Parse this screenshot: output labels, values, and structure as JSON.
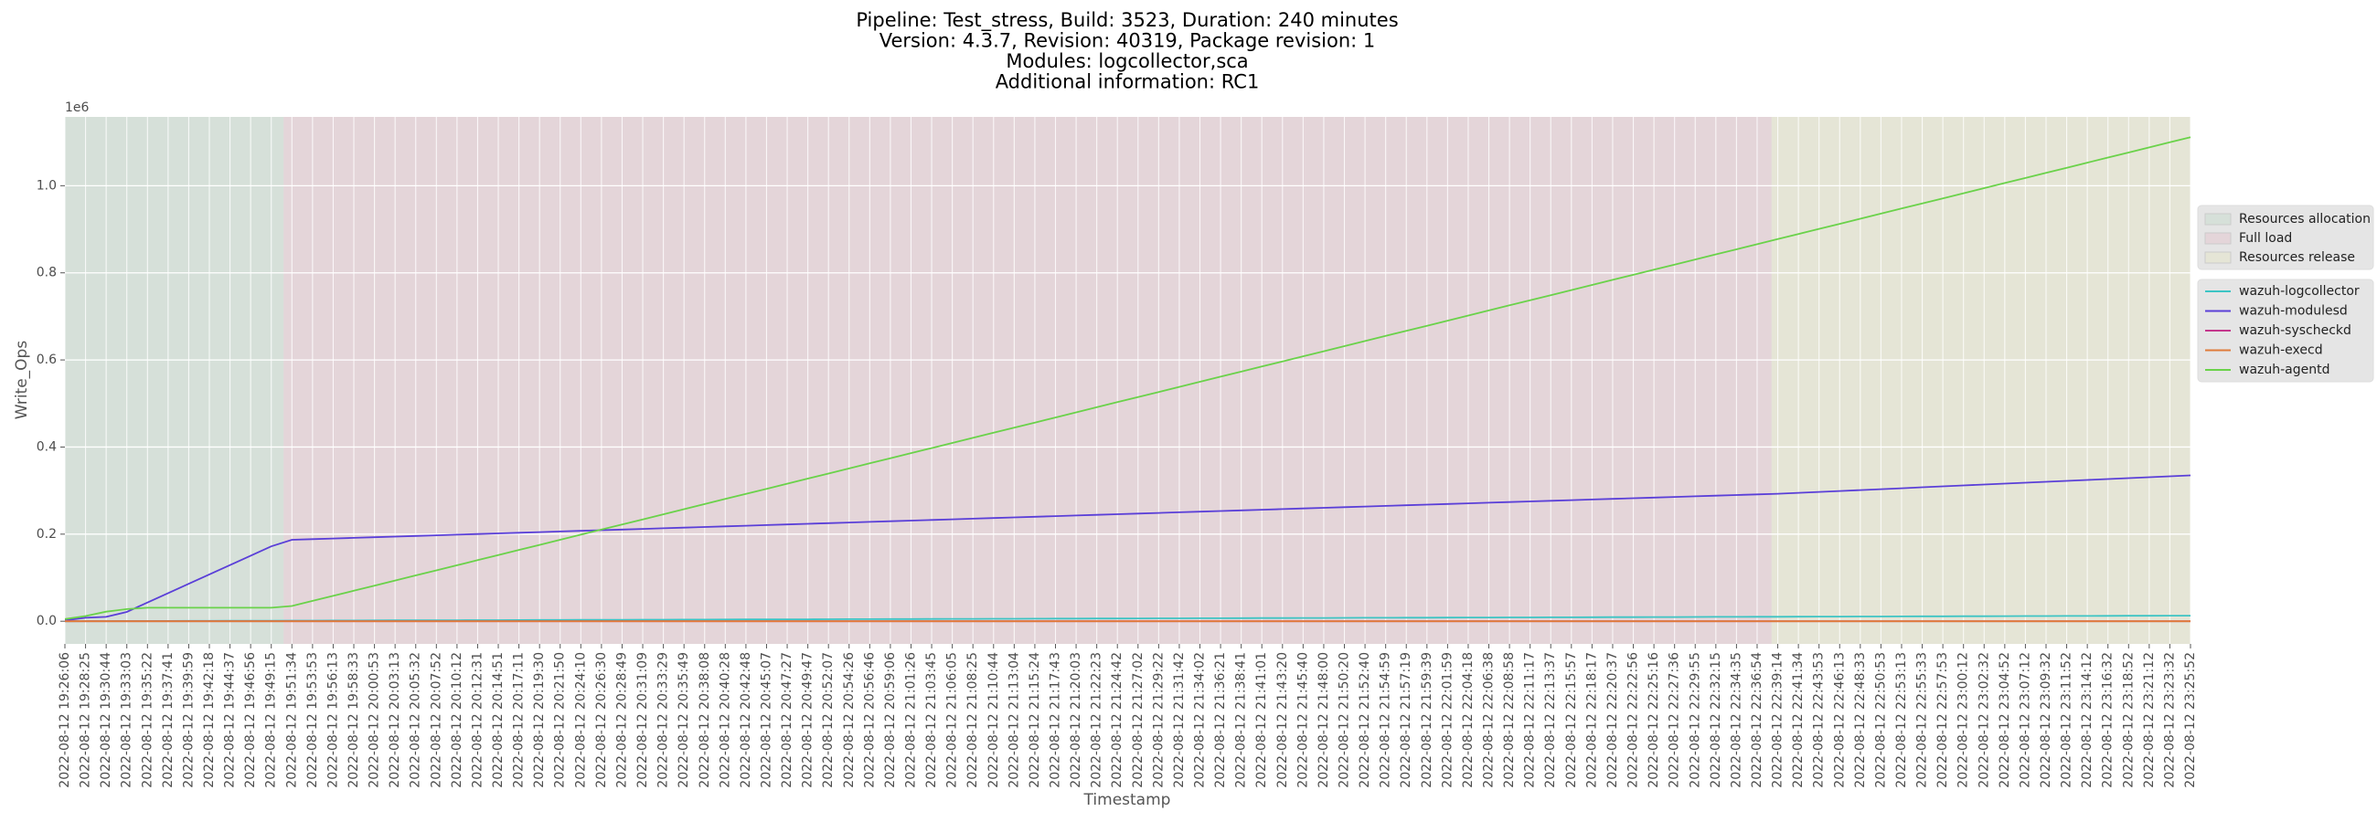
{
  "chart_data": {
    "type": "line",
    "title": [
      "Pipeline: Test_stress, Build: 3523, Duration: 240 minutes",
      "Version: 4.3.7, Revision: 40319, Package revision: 1",
      "Modules: logcollector,sca",
      "Additional information: RC1"
    ],
    "xlabel": "Timestamp",
    "ylabel": "Write_Ops",
    "y_offset_label": "1e6",
    "ylim": [
      -52000,
      1158000
    ],
    "yticks": [
      {
        "value": 0,
        "label": "0.0"
      },
      {
        "value": 200000,
        "label": "0.2"
      },
      {
        "value": 400000,
        "label": "0.4"
      },
      {
        "value": 600000,
        "label": "0.6"
      },
      {
        "value": 800000,
        "label": "0.8"
      },
      {
        "value": 1000000,
        "label": "1.0"
      }
    ],
    "grid": true,
    "legend": "right",
    "phases": [
      {
        "name": "Resources allocation",
        "color": "#d6e0d9",
        "x": [
          0,
          10.6
        ]
      },
      {
        "name": "Full load",
        "color": "#e4d5d9",
        "x": [
          10.6,
          82.7
        ]
      },
      {
        "name": "Resources release",
        "color": "#e5e5d6",
        "x": [
          82.7,
          103
        ]
      }
    ],
    "categories": [
      "2022-08-12 19:26:06",
      "2022-08-12 19:28:25",
      "2022-08-12 19:30:44",
      "2022-08-12 19:33:03",
      "2022-08-12 19:35:22",
      "2022-08-12 19:37:41",
      "2022-08-12 19:39:59",
      "2022-08-12 19:42:18",
      "2022-08-12 19:44:37",
      "2022-08-12 19:46:56",
      "2022-08-12 19:49:15",
      "2022-08-12 19:51:34",
      "2022-08-12 19:53:53",
      "2022-08-12 19:56:13",
      "2022-08-12 19:58:33",
      "2022-08-12 20:00:53",
      "2022-08-12 20:03:13",
      "2022-08-12 20:05:32",
      "2022-08-12 20:07:52",
      "2022-08-12 20:10:12",
      "2022-08-12 20:12:31",
      "2022-08-12 20:14:51",
      "2022-08-12 20:17:11",
      "2022-08-12 20:19:30",
      "2022-08-12 20:21:50",
      "2022-08-12 20:24:10",
      "2022-08-12 20:26:30",
      "2022-08-12 20:28:49",
      "2022-08-12 20:31:09",
      "2022-08-12 20:33:29",
      "2022-08-12 20:35:49",
      "2022-08-12 20:38:08",
      "2022-08-12 20:40:28",
      "2022-08-12 20:42:48",
      "2022-08-12 20:45:07",
      "2022-08-12 20:47:27",
      "2022-08-12 20:49:47",
      "2022-08-12 20:52:07",
      "2022-08-12 20:54:26",
      "2022-08-12 20:56:46",
      "2022-08-12 20:59:06",
      "2022-08-12 21:01:26",
      "2022-08-12 21:03:45",
      "2022-08-12 21:06:05",
      "2022-08-12 21:08:25",
      "2022-08-12 21:10:44",
      "2022-08-12 21:13:04",
      "2022-08-12 21:15:24",
      "2022-08-12 21:17:43",
      "2022-08-12 21:20:03",
      "2022-08-12 21:22:23",
      "2022-08-12 21:24:42",
      "2022-08-12 21:27:02",
      "2022-08-12 21:29:22",
      "2022-08-12 21:31:42",
      "2022-08-12 21:34:02",
      "2022-08-12 21:36:21",
      "2022-08-12 21:38:41",
      "2022-08-12 21:41:01",
      "2022-08-12 21:43:20",
      "2022-08-12 21:45:40",
      "2022-08-12 21:48:00",
      "2022-08-12 21:50:20",
      "2022-08-12 21:52:40",
      "2022-08-12 21:54:59",
      "2022-08-12 21:57:19",
      "2022-08-12 21:59:39",
      "2022-08-12 22:01:59",
      "2022-08-12 22:04:18",
      "2022-08-12 22:06:38",
      "2022-08-12 22:08:58",
      "2022-08-12 22:11:17",
      "2022-08-12 22:13:37",
      "2022-08-12 22:15:57",
      "2022-08-12 22:18:17",
      "2022-08-12 22:20:37",
      "2022-08-12 22:22:56",
      "2022-08-12 22:25:16",
      "2022-08-12 22:27:36",
      "2022-08-12 22:29:55",
      "2022-08-12 22:32:15",
      "2022-08-12 22:34:35",
      "2022-08-12 22:36:54",
      "2022-08-12 22:39:14",
      "2022-08-12 22:41:34",
      "2022-08-12 22:43:53",
      "2022-08-12 22:46:13",
      "2022-08-12 22:48:33",
      "2022-08-12 22:50:53",
      "2022-08-12 22:53:13",
      "2022-08-12 22:55:33",
      "2022-08-12 22:57:53",
      "2022-08-12 23:00:12",
      "2022-08-12 23:02:32",
      "2022-08-12 23:04:52",
      "2022-08-12 23:07:12",
      "2022-08-12 23:09:32",
      "2022-08-12 23:11:52",
      "2022-08-12 23:14:12",
      "2022-08-12 23:16:32",
      "2022-08-12 23:18:52",
      "2022-08-12 23:21:12",
      "2022-08-12 23:23:32",
      "2022-08-12 23:25:52"
    ],
    "series": [
      {
        "name": "wazuh-logcollector",
        "color": "#3cc4c4",
        "values": [
          0,
          125,
          250,
          375,
          500,
          625,
          750,
          875,
          1000,
          1125,
          1250,
          1375,
          1500,
          1625,
          1750,
          1875,
          2000,
          2125,
          2250,
          2375,
          2500,
          2625,
          2750,
          2875,
          3000,
          3125,
          3250,
          3375,
          3500,
          3625,
          3750,
          3875,
          4000,
          4125,
          4250,
          4375,
          4500,
          4625,
          4750,
          4875,
          5000,
          5125,
          5250,
          5375,
          5500,
          5625,
          5750,
          5875,
          6000,
          6125,
          6250,
          6375,
          6500,
          6625,
          6750,
          6875,
          7000,
          7125,
          7250,
          7375,
          7500,
          7625,
          7750,
          7875,
          8000,
          8125,
          8250,
          8375,
          8500,
          8625,
          8750,
          8875,
          9000,
          9125,
          9250,
          9375,
          9500,
          9625,
          9750,
          9875,
          10000,
          10125,
          10250,
          10375,
          10500,
          10625,
          10750,
          10875,
          11000,
          11125,
          11250,
          11375,
          11500,
          11625,
          11750,
          11875,
          12000,
          12125,
          12250,
          12375,
          12500,
          12625,
          12750,
          12875
        ]
      },
      {
        "name": "wazuh-modulesd",
        "color": "#5a3fd8",
        "values": [
          2000,
          8000,
          10000,
          21500,
          43000,
          64500,
          86000,
          107500,
          129000,
          150500,
          172000,
          187000,
          188470,
          189940,
          191410,
          192880,
          194350,
          195820,
          197290,
          198760,
          200230,
          201700,
          203170,
          204640,
          206110,
          207580,
          209050,
          210520,
          211990,
          213460,
          214930,
          216400,
          217870,
          219340,
          220810,
          222280,
          223750,
          225220,
          226690,
          228160,
          229630,
          231100,
          232570,
          234040,
          235510,
          236980,
          238450,
          239920,
          241390,
          242860,
          244330,
          245800,
          247270,
          248740,
          250210,
          251680,
          253150,
          254620,
          256090,
          257560,
          259030,
          260500,
          261970,
          263440,
          264910,
          266380,
          267850,
          269320,
          270790,
          272260,
          273730,
          275200,
          276670,
          278140,
          279610,
          281080,
          282550,
          284020,
          285490,
          286960,
          288430,
          289900,
          291370,
          292840,
          294940,
          297040,
          299140,
          301240,
          303340,
          305440,
          307540,
          309640,
          311740,
          313840,
          315940,
          318040,
          320140,
          322240,
          324340,
          326440,
          328540,
          330640,
          332740,
          334840
        ]
      },
      {
        "name": "wazuh-syscheckd",
        "color": "#c4378c",
        "values": [
          0,
          0,
          0,
          0,
          0,
          0,
          0,
          0,
          0,
          0,
          0,
          0,
          0,
          0,
          0,
          0,
          0,
          0,
          0,
          0,
          0,
          0,
          0,
          0,
          0,
          0,
          0,
          0,
          0,
          0,
          0,
          0,
          0,
          0,
          0,
          0,
          0,
          0,
          0,
          0,
          0,
          0,
          0,
          0,
          0,
          0,
          0,
          0,
          0,
          0,
          0,
          0,
          0,
          0,
          0,
          0,
          0,
          0,
          0,
          0,
          0,
          0,
          0,
          0,
          0,
          0,
          0,
          0,
          0,
          0,
          0,
          0,
          0,
          0,
          0,
          0,
          0,
          0,
          0,
          0,
          0,
          0,
          0,
          0,
          0,
          0,
          0,
          0,
          0,
          0,
          0,
          0,
          0,
          0,
          0,
          0,
          0,
          0,
          0,
          0,
          0,
          0,
          0,
          0
        ]
      },
      {
        "name": "wazuh-execd",
        "color": "#e07c3a",
        "values": [
          0,
          0,
          0,
          0,
          0,
          0,
          0,
          0,
          0,
          0,
          0,
          0,
          0,
          0,
          0,
          0,
          0,
          0,
          0,
          0,
          0,
          0,
          0,
          0,
          0,
          0,
          0,
          0,
          0,
          0,
          0,
          0,
          0,
          0,
          0,
          0,
          0,
          0,
          0,
          0,
          0,
          0,
          0,
          0,
          0,
          0,
          0,
          0,
          0,
          0,
          0,
          0,
          0,
          0,
          0,
          0,
          0,
          0,
          0,
          0,
          0,
          0,
          0,
          0,
          0,
          0,
          0,
          0,
          0,
          0,
          0,
          0,
          0,
          0,
          0,
          0,
          0,
          0,
          0,
          0,
          0,
          0,
          0,
          0,
          0,
          0,
          0,
          0,
          0,
          0,
          0,
          0,
          0,
          0,
          0,
          0,
          0,
          0,
          0,
          0,
          0,
          0,
          0,
          0
        ]
      },
      {
        "name": "wazuh-agentd",
        "color": "#6ad24a",
        "values": [
          5000,
          12000,
          22000,
          28000,
          31000,
          31000,
          31000,
          31000,
          31000,
          31000,
          31000,
          35000,
          46700,
          58400,
          70100,
          81800,
          93500,
          105200,
          116900,
          128600,
          140300,
          152000,
          163700,
          175400,
          187100,
          198800,
          210500,
          222200,
          233900,
          245600,
          257300,
          269000,
          280700,
          292400,
          304100,
          315800,
          327500,
          339200,
          350900,
          362600,
          374300,
          386000,
          397700,
          409400,
          421100,
          432800,
          444500,
          456200,
          467900,
          479600,
          491300,
          503000,
          514700,
          526400,
          538100,
          549800,
          561500,
          573200,
          584900,
          596600,
          608300,
          620000,
          631700,
          643400,
          655100,
          666800,
          678500,
          690200,
          701900,
          713600,
          725300,
          737000,
          748700,
          760400,
          772100,
          783800,
          795500,
          807200,
          818900,
          830600,
          842300,
          854000,
          865700,
          877400,
          889100,
          900800,
          912500,
          924200,
          935900,
          947600,
          959300,
          971000,
          982700,
          994400,
          1006100,
          1017800,
          1029500,
          1041200,
          1052900,
          1064600,
          1076300,
          1088000,
          1099700,
          1111400
        ]
      }
    ]
  }
}
